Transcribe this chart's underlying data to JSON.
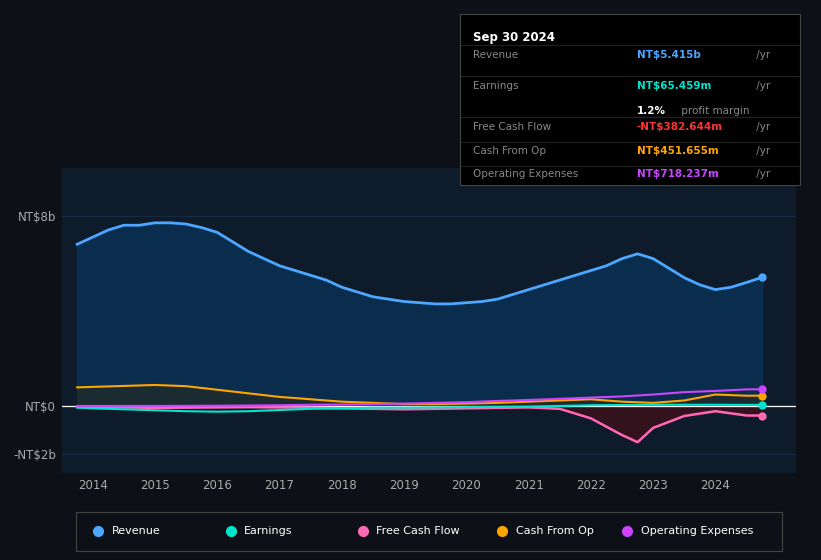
{
  "bg_color": "#0d1117",
  "chart_bg_color": "#0d1b2a",
  "grid_color": "#1e3050",
  "zero_line_color": "#ffffff",
  "ytick_labels": [
    "-NT$2b",
    "NT$0",
    "NT$8b"
  ],
  "yticks": [
    -2000000000,
    0,
    8000000000
  ],
  "ylim": [
    -2800000000,
    10000000000
  ],
  "xlim_start": 2013.5,
  "xlim_end": 2025.3,
  "xtick_years": [
    2014,
    2015,
    2016,
    2017,
    2018,
    2019,
    2020,
    2021,
    2022,
    2023,
    2024
  ],
  "info_box": {
    "date": "Sep 30 2024",
    "revenue_label": "Revenue",
    "revenue_value": "NT$5.415b",
    "revenue_suffix": " /yr",
    "revenue_color": "#4da6ff",
    "earnings_label": "Earnings",
    "earnings_value": "NT$65.459m",
    "earnings_suffix": " /yr",
    "earnings_color": "#00e5cc",
    "margin_text": "1.2%",
    "margin_suffix": " profit margin",
    "margin_color": "#ffffff",
    "fcf_label": "Free Cash Flow",
    "fcf_value": "-NT$382.644m",
    "fcf_suffix": " /yr",
    "fcf_color": "#ff3333",
    "cashop_label": "Cash From Op",
    "cashop_value": "NT$451.655m",
    "cashop_suffix": " /yr",
    "cashop_color": "#ffa500",
    "opex_label": "Operating Expenses",
    "opex_value": "NT$718.237m",
    "opex_suffix": " /yr",
    "opex_color": "#cc44ff"
  },
  "legend": [
    {
      "label": "Revenue",
      "color": "#4da6ff"
    },
    {
      "label": "Earnings",
      "color": "#00e5cc"
    },
    {
      "label": "Free Cash Flow",
      "color": "#ff69b4"
    },
    {
      "label": "Cash From Op",
      "color": "#ffa500"
    },
    {
      "label": "Operating Expenses",
      "color": "#cc44ff"
    }
  ],
  "revenue_x": [
    2013.75,
    2014.0,
    2014.25,
    2014.5,
    2014.75,
    2015.0,
    2015.25,
    2015.5,
    2015.75,
    2016.0,
    2016.25,
    2016.5,
    2016.75,
    2017.0,
    2017.25,
    2017.5,
    2017.75,
    2018.0,
    2018.25,
    2018.5,
    2018.75,
    2019.0,
    2019.25,
    2019.5,
    2019.75,
    2020.0,
    2020.25,
    2020.5,
    2020.75,
    2021.0,
    2021.25,
    2021.5,
    2021.75,
    2022.0,
    2022.25,
    2022.5,
    2022.75,
    2023.0,
    2023.25,
    2023.5,
    2023.75,
    2024.0,
    2024.25,
    2024.5,
    2024.75
  ],
  "revenue_y": [
    6800000000,
    7100000000,
    7400000000,
    7600000000,
    7600000000,
    7700000000,
    7700000000,
    7650000000,
    7500000000,
    7300000000,
    6900000000,
    6500000000,
    6200000000,
    5900000000,
    5700000000,
    5500000000,
    5300000000,
    5000000000,
    4800000000,
    4600000000,
    4500000000,
    4400000000,
    4350000000,
    4300000000,
    4300000000,
    4350000000,
    4400000000,
    4500000000,
    4700000000,
    4900000000,
    5100000000,
    5300000000,
    5500000000,
    5700000000,
    5900000000,
    6200000000,
    6400000000,
    6200000000,
    5800000000,
    5400000000,
    5100000000,
    4900000000,
    5000000000,
    5200000000,
    5415000000
  ],
  "earnings_x": [
    2013.75,
    2014.0,
    2014.5,
    2015.0,
    2015.5,
    2016.0,
    2016.5,
    2017.0,
    2017.5,
    2018.0,
    2018.5,
    2019.0,
    2019.5,
    2020.0,
    2020.5,
    2021.0,
    2021.5,
    2022.0,
    2022.5,
    2023.0,
    2023.5,
    2024.0,
    2024.5,
    2024.75
  ],
  "earnings_y": [
    -50000000,
    -80000000,
    -120000000,
    -160000000,
    -200000000,
    -220000000,
    -200000000,
    -150000000,
    -100000000,
    -80000000,
    -50000000,
    -50000000,
    -40000000,
    -30000000,
    -20000000,
    -10000000,
    20000000,
    50000000,
    60000000,
    70000000,
    70000000,
    70000000,
    65000000,
    65459000
  ],
  "fcf_x": [
    2013.75,
    2014.0,
    2014.5,
    2015.0,
    2015.5,
    2016.0,
    2016.5,
    2017.0,
    2017.5,
    2018.0,
    2018.5,
    2019.0,
    2019.5,
    2020.0,
    2020.5,
    2021.0,
    2021.5,
    2022.0,
    2022.5,
    2022.75,
    2023.0,
    2023.5,
    2024.0,
    2024.5,
    2024.75
  ],
  "fcf_y": [
    -20000000,
    -30000000,
    -40000000,
    -60000000,
    -50000000,
    -40000000,
    -30000000,
    -40000000,
    -50000000,
    -80000000,
    -100000000,
    -120000000,
    -100000000,
    -80000000,
    -60000000,
    -40000000,
    -100000000,
    -500000000,
    -1200000000,
    -1500000000,
    -900000000,
    -400000000,
    -200000000,
    -380000000,
    -382644000
  ],
  "cashop_x": [
    2013.75,
    2014.0,
    2014.5,
    2015.0,
    2015.5,
    2016.0,
    2016.5,
    2017.0,
    2017.5,
    2018.0,
    2018.5,
    2019.0,
    2019.5,
    2020.0,
    2020.5,
    2021.0,
    2021.5,
    2022.0,
    2022.5,
    2023.0,
    2023.5,
    2024.0,
    2024.5,
    2024.75
  ],
  "cashop_y": [
    800000000,
    820000000,
    860000000,
    900000000,
    850000000,
    700000000,
    550000000,
    400000000,
    300000000,
    200000000,
    150000000,
    100000000,
    100000000,
    120000000,
    150000000,
    200000000,
    250000000,
    300000000,
    200000000,
    150000000,
    250000000,
    500000000,
    450000000,
    451655000
  ],
  "opex_x": [
    2013.75,
    2014.0,
    2014.5,
    2015.0,
    2015.5,
    2016.0,
    2016.5,
    2017.0,
    2017.5,
    2018.0,
    2018.5,
    2019.0,
    2019.5,
    2020.0,
    2020.5,
    2021.0,
    2021.5,
    2022.0,
    2022.5,
    2023.0,
    2023.5,
    2024.0,
    2024.5,
    2024.75
  ],
  "opex_y": [
    20000000,
    20000000,
    20000000,
    20000000,
    25000000,
    30000000,
    40000000,
    50000000,
    70000000,
    80000000,
    100000000,
    120000000,
    150000000,
    180000000,
    230000000,
    270000000,
    320000000,
    370000000,
    420000000,
    500000000,
    600000000,
    650000000,
    715000000,
    718237000
  ]
}
